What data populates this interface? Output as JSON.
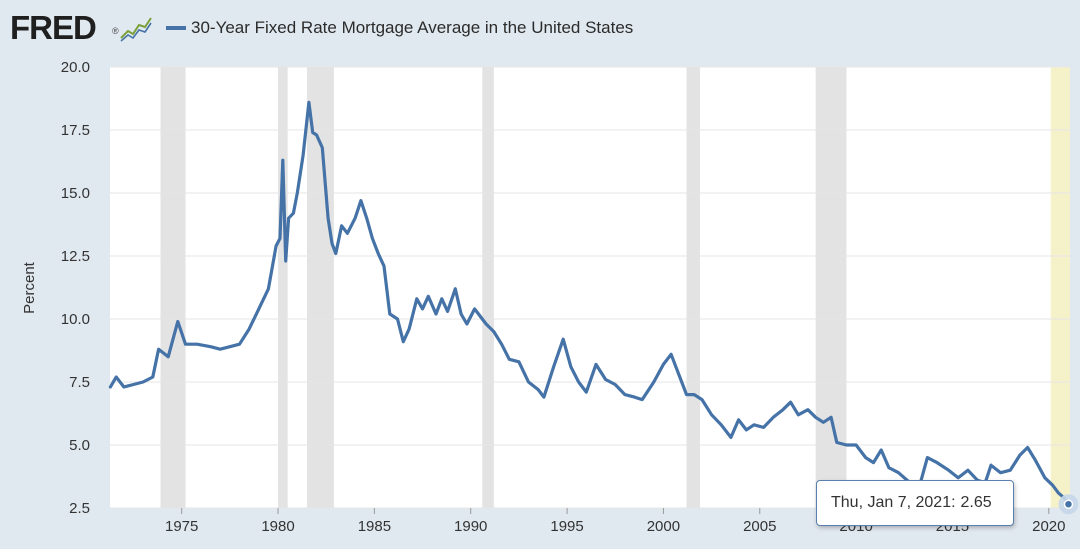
{
  "header": {
    "logo_text": "FRED",
    "logo_reg": "®",
    "series_title": "30-Year Fixed Rate Mortgage Average in the United States"
  },
  "tooltip": {
    "date_label": "Thu, Jan 7, 2021:",
    "value_label": "2.65"
  },
  "colors": {
    "line": "#4572a7",
    "plot_background": "#ffffff",
    "page_background": "#e1e9f0",
    "recession": "#e3e3e3",
    "highlight": "#f5f2c9"
  },
  "chart_data": {
    "type": "line",
    "title": "30-Year Fixed Rate Mortgage Average in the United States",
    "xlabel": "",
    "ylabel": "Percent",
    "xlim": [
      1971.28,
      2021.1
    ],
    "ylim": [
      2.5,
      20.0
    ],
    "y_ticks": [
      2.5,
      5.0,
      7.5,
      10.0,
      12.5,
      15.0,
      17.5,
      20.0
    ],
    "y_tick_labels": [
      "2.5",
      "5.0",
      "7.5",
      "10.0",
      "12.5",
      "15.0",
      "17.5",
      "20.0"
    ],
    "x_ticks": [
      1975,
      1980,
      1985,
      1990,
      1995,
      2000,
      2005,
      2010,
      2015,
      2020
    ],
    "x_tick_labels": [
      "1975",
      "1980",
      "1985",
      "1990",
      "1995",
      "2000",
      "2005",
      "2010",
      "2015",
      "2020"
    ],
    "recessions": [
      [
        1973.9,
        1975.2
      ],
      [
        1980.0,
        1980.5
      ],
      [
        1981.5,
        1982.9
      ],
      [
        1990.6,
        1991.2
      ],
      [
        2001.2,
        2001.9
      ],
      [
        2007.9,
        2009.5
      ]
    ],
    "highlight_range": [
      2020.1,
      2021.1
    ],
    "series": [
      {
        "name": "30-Year Fixed Rate Mortgage Average in the United States",
        "x": [
          1971.3,
          1971.6,
          1972.0,
          1972.5,
          1973.0,
          1973.5,
          1973.8,
          1974.3,
          1974.8,
          1975.2,
          1975.8,
          1976.5,
          1977.0,
          1977.5,
          1978.0,
          1978.5,
          1979.0,
          1979.5,
          1979.9,
          1980.1,
          1980.25,
          1980.4,
          1980.55,
          1980.8,
          1981.0,
          1981.3,
          1981.6,
          1981.8,
          1982.0,
          1982.3,
          1982.6,
          1982.8,
          1983.0,
          1983.3,
          1983.6,
          1984.0,
          1984.3,
          1984.6,
          1984.9,
          1985.2,
          1985.5,
          1985.8,
          1986.2,
          1986.5,
          1986.8,
          1987.2,
          1987.5,
          1987.8,
          1988.2,
          1988.5,
          1988.8,
          1989.2,
          1989.5,
          1989.8,
          1990.2,
          1990.5,
          1990.8,
          1991.2,
          1991.6,
          1992.0,
          1992.5,
          1993.0,
          1993.5,
          1993.8,
          1994.3,
          1994.8,
          1995.2,
          1995.6,
          1996.0,
          1996.5,
          1997.0,
          1997.5,
          1998.0,
          1998.5,
          1998.9,
          1999.5,
          2000.0,
          2000.4,
          2000.8,
          2001.2,
          2001.6,
          2002.0,
          2002.5,
          2003.0,
          2003.5,
          2003.9,
          2004.3,
          2004.7,
          2005.2,
          2005.7,
          2006.2,
          2006.6,
          2007.0,
          2007.5,
          2007.9,
          2008.3,
          2008.7,
          2009.0,
          2009.5,
          2010.0,
          2010.5,
          2010.9,
          2011.3,
          2011.7,
          2012.2,
          2012.8,
          2013.3,
          2013.7,
          2014.2,
          2014.8,
          2015.3,
          2015.8,
          2016.3,
          2016.7,
          2017.0,
          2017.5,
          2018.0,
          2018.5,
          2018.9,
          2019.3,
          2019.8,
          2020.2,
          2020.5,
          2020.8,
          2021.02
        ],
        "values": [
          7.3,
          7.7,
          7.3,
          7.4,
          7.5,
          7.7,
          8.8,
          8.5,
          9.9,
          9.0,
          9.0,
          8.9,
          8.8,
          8.9,
          9.0,
          9.6,
          10.4,
          11.2,
          12.9,
          13.2,
          16.3,
          12.3,
          14.0,
          14.2,
          15.0,
          16.5,
          18.6,
          17.4,
          17.3,
          16.8,
          14.0,
          13.0,
          12.6,
          13.7,
          13.4,
          14.0,
          14.7,
          14.0,
          13.2,
          12.6,
          12.1,
          10.2,
          10.0,
          9.1,
          9.6,
          10.8,
          10.4,
          10.9,
          10.2,
          10.8,
          10.3,
          11.2,
          10.2,
          9.8,
          10.4,
          10.1,
          9.8,
          9.5,
          9.0,
          8.4,
          8.3,
          7.5,
          7.2,
          6.9,
          8.1,
          9.2,
          8.1,
          7.5,
          7.1,
          8.2,
          7.6,
          7.4,
          7.0,
          6.9,
          6.8,
          7.5,
          8.2,
          8.6,
          7.8,
          7.0,
          7.0,
          6.8,
          6.2,
          5.8,
          5.3,
          6.0,
          5.6,
          5.8,
          5.7,
          6.1,
          6.4,
          6.7,
          6.2,
          6.4,
          6.1,
          5.9,
          6.1,
          5.1,
          5.0,
          5.0,
          4.5,
          4.3,
          4.8,
          4.1,
          3.9,
          3.5,
          3.4,
          4.5,
          4.3,
          4.0,
          3.7,
          4.0,
          3.6,
          3.5,
          4.2,
          3.9,
          4.0,
          4.6,
          4.9,
          4.4,
          3.7,
          3.4,
          3.1,
          2.9,
          2.65
        ]
      }
    ]
  }
}
